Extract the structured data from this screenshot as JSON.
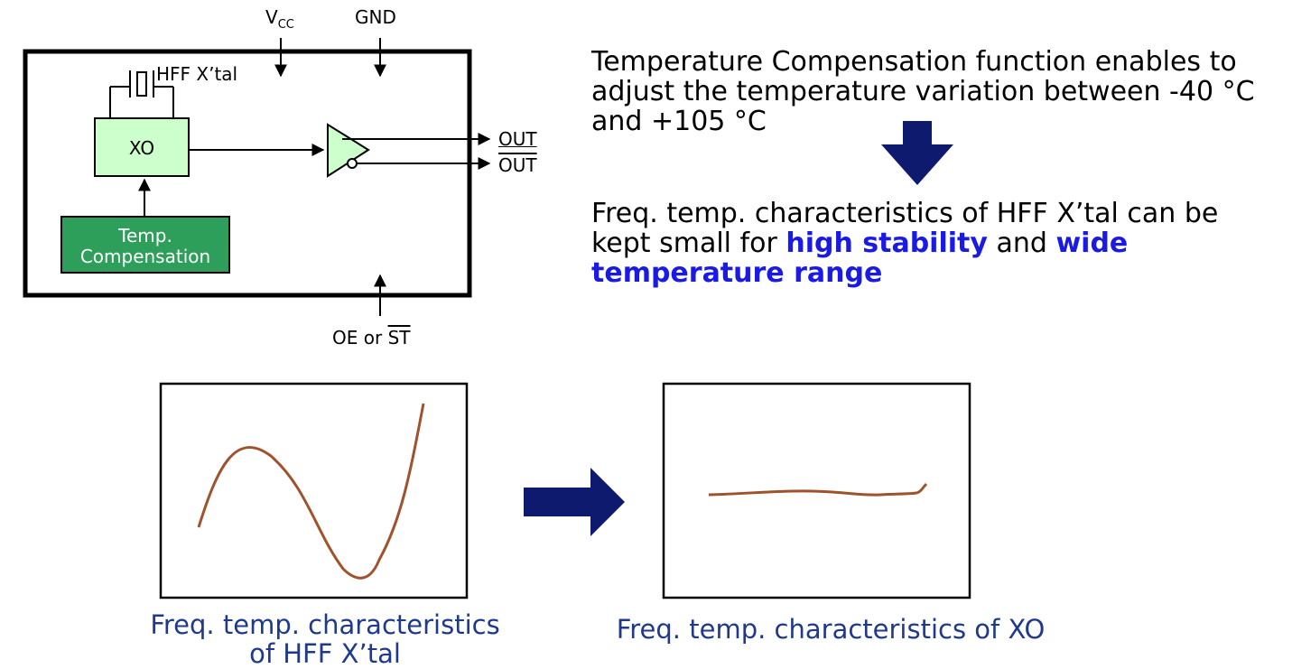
{
  "block_diagram": {
    "pin_vcc": {
      "main": "V",
      "sub": "CC"
    },
    "pin_gnd": "GND",
    "crystal_label": "HFF X’tal",
    "xo_label": "XO",
    "temp_comp_line1": "Temp.",
    "temp_comp_line2": "Compensation",
    "out_label": "OUT",
    "out_bar_label": "OUT",
    "oe_label": "OE or ",
    "st_bar_label": "ST"
  },
  "description": {
    "intro_line1": "Temperature Compensation function enables to",
    "intro_line2": "adjust the temperature variation between -40 °C",
    "intro_line3": "and +105 °C",
    "result_line1": "Freq. temp. characteristics of HFF X’tal can be",
    "result_line2_a": "kept small for ",
    "result_line2_b": "high stability",
    "result_line2_c": " and ",
    "result_line2_d": "wide",
    "result_line3": "temperature range"
  },
  "captions": {
    "left_line1": "Freq. temp. characteristics",
    "left_line2": "of HFF X’tal",
    "right": "Freq. temp. characteristics of XO"
  },
  "colors": {
    "xo_fill": "#ccffcc",
    "temp_comp_fill": "#2e9e5b",
    "buffer_fill": "#ccffcc",
    "arrow": "#0d1a6e",
    "curve": "#a0522d",
    "highlight": "#1a1ae6",
    "caption": "#1f3a8c"
  }
}
